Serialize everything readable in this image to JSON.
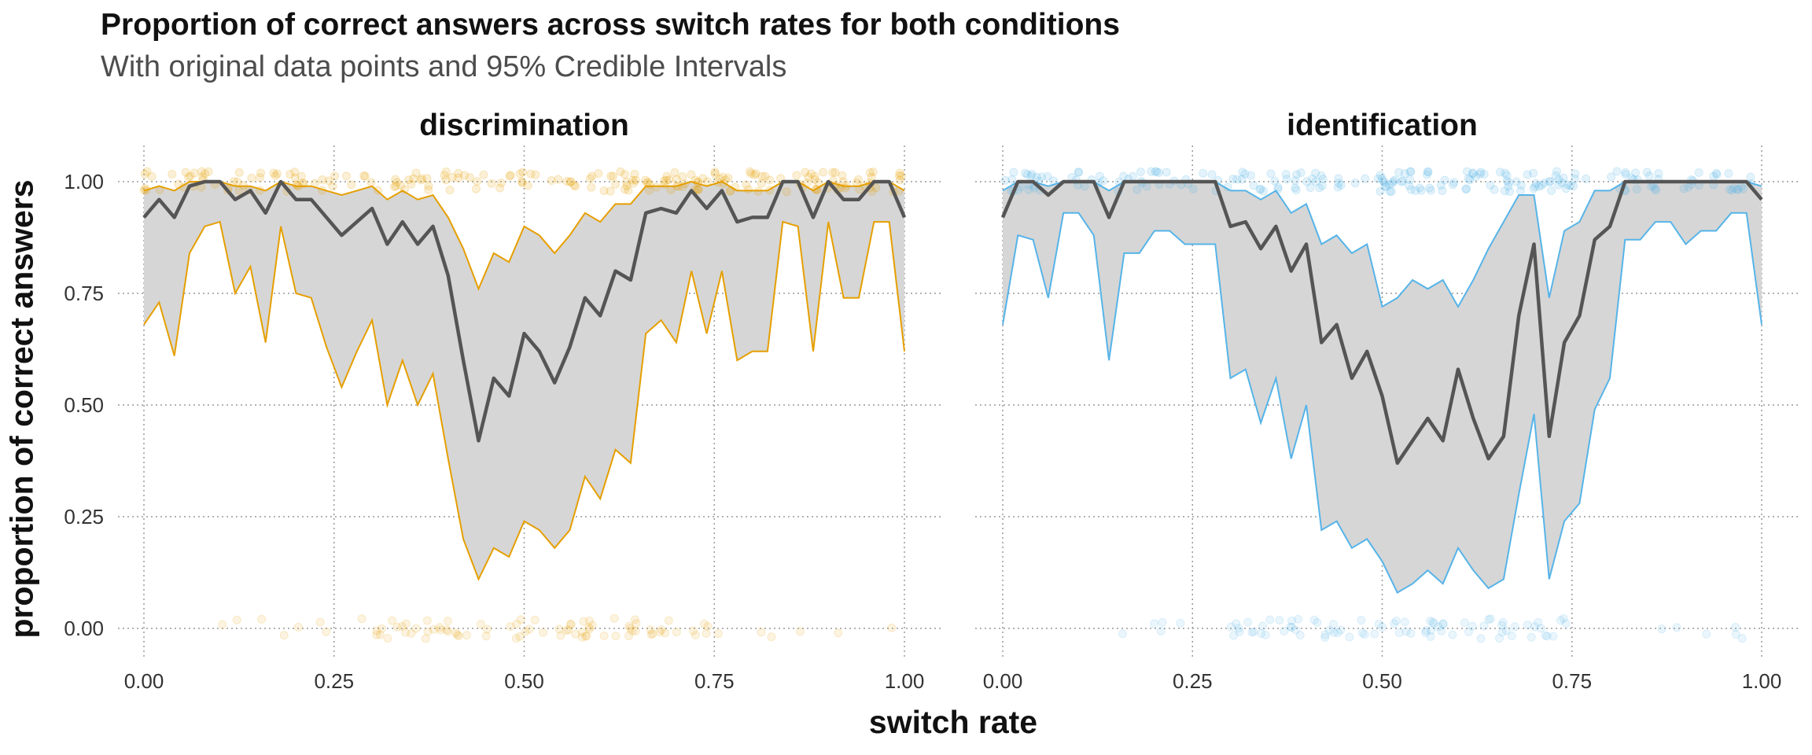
{
  "chart_data": {
    "type": "line",
    "title": "Proportion of correct answers across switch rates for both conditions",
    "subtitle": "With original data points and 95% Credible Intervals",
    "xlabel": "switch rate",
    "ylabel": "proportion of correct answers",
    "xlim": [
      0,
      1
    ],
    "ylim": [
      -0.05,
      1.08
    ],
    "x_ticks": [
      "0.00",
      "0.25",
      "0.50",
      "0.75",
      "1.00"
    ],
    "y_ticks": [
      "0.00",
      "0.25",
      "0.50",
      "0.75",
      "1.00"
    ],
    "grid": true,
    "panels": [
      {
        "name": "discrimination",
        "color": "#E69F00",
        "x": [
          0.0,
          0.02,
          0.04,
          0.06,
          0.08,
          0.1,
          0.12,
          0.14,
          0.16,
          0.18,
          0.2,
          0.22,
          0.24,
          0.26,
          0.28,
          0.3,
          0.32,
          0.34,
          0.36,
          0.38,
          0.4,
          0.42,
          0.44,
          0.46,
          0.48,
          0.5,
          0.52,
          0.54,
          0.56,
          0.58,
          0.6,
          0.62,
          0.64,
          0.66,
          0.68,
          0.7,
          0.72,
          0.74,
          0.76,
          0.78,
          0.8,
          0.82,
          0.84,
          0.86,
          0.88,
          0.9,
          0.92,
          0.94,
          0.96,
          0.98,
          1.0
        ],
        "mean": [
          0.92,
          0.96,
          0.92,
          0.99,
          1.0,
          1.0,
          0.96,
          0.98,
          0.93,
          1.0,
          0.96,
          0.96,
          0.92,
          0.88,
          0.91,
          0.94,
          0.86,
          0.91,
          0.86,
          0.9,
          0.79,
          0.6,
          0.42,
          0.56,
          0.52,
          0.66,
          0.62,
          0.55,
          0.63,
          0.74,
          0.7,
          0.8,
          0.78,
          0.93,
          0.94,
          0.93,
          0.98,
          0.94,
          0.98,
          0.91,
          0.92,
          0.92,
          1.0,
          1.0,
          0.92,
          1.0,
          0.96,
          0.96,
          1.0,
          1.0,
          0.92
        ],
        "lower": [
          0.68,
          0.73,
          0.61,
          0.84,
          0.9,
          0.91,
          0.75,
          0.81,
          0.64,
          0.9,
          0.75,
          0.74,
          0.63,
          0.54,
          0.62,
          0.69,
          0.5,
          0.6,
          0.5,
          0.57,
          0.38,
          0.2,
          0.11,
          0.18,
          0.16,
          0.24,
          0.22,
          0.18,
          0.22,
          0.34,
          0.29,
          0.4,
          0.37,
          0.66,
          0.69,
          0.64,
          0.8,
          0.66,
          0.8,
          0.6,
          0.62,
          0.62,
          0.91,
          0.9,
          0.62,
          0.91,
          0.74,
          0.74,
          0.91,
          0.91,
          0.62
        ],
        "upper": [
          0.98,
          0.99,
          0.98,
          1.0,
          1.0,
          1.0,
          0.99,
          0.99,
          0.98,
          1.0,
          0.99,
          0.99,
          0.98,
          0.97,
          0.98,
          0.99,
          0.96,
          0.98,
          0.96,
          0.97,
          0.92,
          0.85,
          0.76,
          0.84,
          0.82,
          0.9,
          0.88,
          0.84,
          0.88,
          0.93,
          0.91,
          0.95,
          0.95,
          0.99,
          0.99,
          0.99,
          1.0,
          0.99,
          1.0,
          0.98,
          0.98,
          0.98,
          1.0,
          1.0,
          0.98,
          1.0,
          0.99,
          0.99,
          1.0,
          1.0,
          0.98
        ]
      },
      {
        "name": "identification",
        "color": "#56B4E9",
        "x": [
          0.0,
          0.02,
          0.04,
          0.06,
          0.08,
          0.1,
          0.12,
          0.14,
          0.16,
          0.18,
          0.2,
          0.22,
          0.24,
          0.26,
          0.28,
          0.3,
          0.32,
          0.34,
          0.36,
          0.38,
          0.4,
          0.42,
          0.44,
          0.46,
          0.48,
          0.5,
          0.52,
          0.54,
          0.56,
          0.58,
          0.6,
          0.62,
          0.64,
          0.66,
          0.68,
          0.7,
          0.72,
          0.74,
          0.76,
          0.78,
          0.8,
          0.82,
          0.84,
          0.86,
          0.88,
          0.9,
          0.92,
          0.94,
          0.96,
          0.98,
          1.0
        ],
        "mean": [
          0.92,
          1.0,
          1.0,
          0.97,
          1.0,
          1.0,
          1.0,
          0.92,
          1.0,
          1.0,
          1.0,
          1.0,
          1.0,
          1.0,
          1.0,
          0.9,
          0.91,
          0.85,
          0.9,
          0.8,
          0.86,
          0.64,
          0.68,
          0.56,
          0.62,
          0.52,
          0.37,
          0.42,
          0.47,
          0.42,
          0.58,
          0.47,
          0.38,
          0.43,
          0.7,
          0.86,
          0.43,
          0.64,
          0.7,
          0.87,
          0.9,
          1.0,
          1.0,
          1.0,
          1.0,
          1.0,
          1.0,
          1.0,
          1.0,
          1.0,
          0.96
        ],
        "lower": [
          0.68,
          0.88,
          0.87,
          0.74,
          0.93,
          0.93,
          0.88,
          0.6,
          0.84,
          0.84,
          0.89,
          0.89,
          0.86,
          0.86,
          0.86,
          0.56,
          0.58,
          0.46,
          0.56,
          0.38,
          0.5,
          0.22,
          0.24,
          0.18,
          0.2,
          0.15,
          0.08,
          0.1,
          0.13,
          0.1,
          0.18,
          0.13,
          0.09,
          0.11,
          0.3,
          0.48,
          0.11,
          0.24,
          0.28,
          0.49,
          0.56,
          0.87,
          0.87,
          0.91,
          0.91,
          0.86,
          0.89,
          0.89,
          0.93,
          0.93,
          0.68
        ],
        "upper": [
          0.98,
          1.0,
          1.0,
          0.99,
          1.0,
          1.0,
          1.0,
          0.98,
          1.0,
          1.0,
          1.0,
          1.0,
          1.0,
          1.0,
          1.0,
          0.98,
          0.98,
          0.96,
          0.98,
          0.93,
          0.95,
          0.86,
          0.88,
          0.84,
          0.86,
          0.72,
          0.74,
          0.78,
          0.76,
          0.78,
          0.72,
          0.78,
          0.85,
          0.91,
          0.97,
          0.97,
          0.74,
          0.89,
          0.91,
          0.98,
          0.98,
          1.0,
          1.0,
          1.0,
          1.0,
          1.0,
          1.0,
          1.0,
          1.0,
          1.0,
          0.99
        ]
      }
    ]
  }
}
